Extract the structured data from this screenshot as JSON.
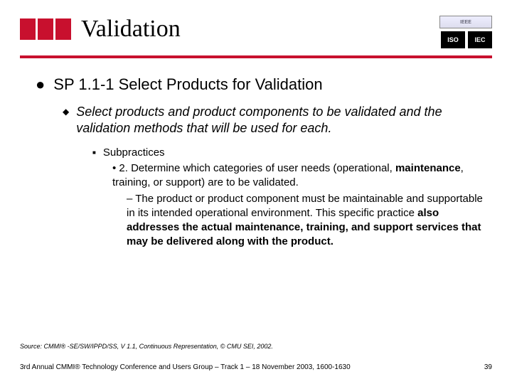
{
  "brand": {
    "color": "#c8102e"
  },
  "title": "Validation",
  "badges": {
    "ieee": "IEEE",
    "iso": "ISO",
    "iec": "IEC"
  },
  "l1": {
    "bullet": "●",
    "text": "SP 1.1-1    Select Products for Validation"
  },
  "l2": {
    "bullet": "◆",
    "text": "Select products and product components to be validated and the validation methods that will be used for each."
  },
  "l3": {
    "bullet": "■",
    "label": "Subpractices"
  },
  "l4": {
    "prefix": "• 2.   Determine which categories of user needs (operational, ",
    "bold1": "maintenance",
    "suffix1": ", training, or support) are to be validated."
  },
  "l5": {
    "prefix": "– The product or product component must be maintainable and supportable in its intended operational environment. This specific practice ",
    "bold": "also addresses the actual maintenance, training, and support services that may be delivered along with the product."
  },
  "source": "Source: CMMI® -SE/SW/IPPD/SS, V 1.1, Continuous Representation, © CMU SEI, 2002.",
  "footer": "3rd Annual CMMI® Technology Conference and Users Group – Track 1 – 18 November 2003, 1600-1630",
  "page": "39"
}
